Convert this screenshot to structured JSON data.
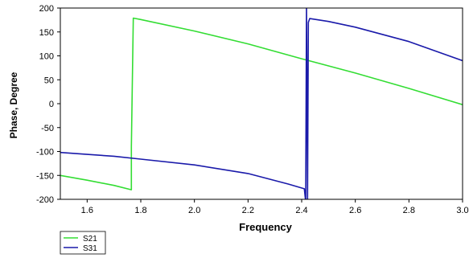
{
  "chart_data": {
    "type": "line",
    "xlabel": "Frequency",
    "ylabel": "Phase, Degree",
    "xlim": [
      1.5,
      3.0
    ],
    "ylim": [
      -200,
      200
    ],
    "x_ticks": [
      1.6,
      1.8,
      2.0,
      2.2,
      2.4,
      2.6,
      2.8,
      3.0
    ],
    "y_ticks": [
      -200,
      -150,
      -100,
      -50,
      0,
      50,
      100,
      150,
      200
    ],
    "x_tick_labels": [
      "1.6",
      "1.8",
      "2.0",
      "2.2",
      "2.4",
      "2.6",
      "2.8",
      "3.0"
    ],
    "y_tick_labels": [
      "-200",
      "-150",
      "-100",
      "-50",
      "0",
      "50",
      "100",
      "150",
      "200"
    ],
    "grid": false,
    "legend": "bottom-left",
    "series": [
      {
        "name": "S21",
        "color": "#33dd33",
        "points": [
          [
            1.5,
            -150
          ],
          [
            1.6,
            -160
          ],
          [
            1.7,
            -171
          ],
          [
            1.765,
            -180
          ],
          [
            1.765,
            -90
          ],
          [
            1.772,
            179
          ],
          [
            1.8,
            176
          ],
          [
            2.0,
            152
          ],
          [
            2.2,
            125
          ],
          [
            2.4,
            94
          ],
          [
            2.6,
            64
          ],
          [
            2.8,
            32
          ],
          [
            3.0,
            -2
          ]
        ]
      },
      {
        "name": "S31",
        "color": "#1a1aaa",
        "points": [
          [
            1.5,
            -102
          ],
          [
            1.6,
            -106
          ],
          [
            1.7,
            -110
          ],
          [
            1.8,
            -116
          ],
          [
            2.0,
            -128
          ],
          [
            2.2,
            -146
          ],
          [
            2.35,
            -168
          ],
          [
            2.41,
            -178
          ],
          [
            2.415,
            -205
          ],
          [
            2.418,
            205
          ],
          [
            2.422,
            -200
          ],
          [
            2.425,
            170
          ],
          [
            2.43,
            178
          ],
          [
            2.5,
            172
          ],
          [
            2.6,
            160
          ],
          [
            2.8,
            130
          ],
          [
            3.0,
            90
          ]
        ]
      }
    ]
  }
}
